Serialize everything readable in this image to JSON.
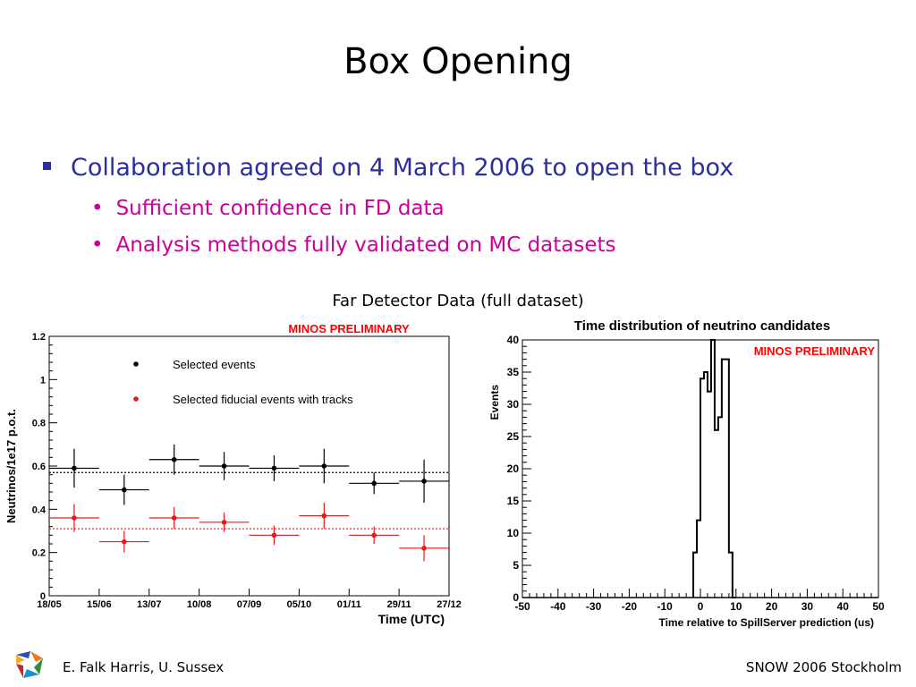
{
  "slide": {
    "title": "Box Opening",
    "bullet": "Collaboration agreed on 4 March 2006 to open the box",
    "sub_bullets": [
      "Sufficient confidence in FD data",
      "Analysis methods fully validated on MC datasets"
    ],
    "figure_caption": "Far Detector Data (full dataset)",
    "footer_left": "E. Falk Harris, U. Sussex",
    "footer_right": "SNOW 2006 Stockholm"
  },
  "colors": {
    "bullet_blue": "#2b2e9e",
    "sub_magenta": "#cc0099",
    "red_series": "#e41a1c",
    "label_red": "#ff0000"
  },
  "chart_data": [
    {
      "type": "scatter",
      "title": "MINOS PRELIMINARY",
      "xlabel": "Time (UTC)",
      "ylabel": "Neutrinos/1e17 p.o.t.",
      "x_tick_labels": [
        "18/05",
        "15/06",
        "13/07",
        "10/08",
        "07/09",
        "05/10",
        "01/11",
        "29/11",
        "27/12"
      ],
      "y_ticks": [
        "0",
        "0.2",
        "0.4",
        "0.6",
        "0.8",
        "1",
        "1.2"
      ],
      "ylim": [
        0,
        1.2
      ],
      "series": [
        {
          "name": "Selected events",
          "color": "#000000",
          "points": [
            {
              "x": 0.5,
              "y": 0.59,
              "xerr": 0.5,
              "yerr": 0.09
            },
            {
              "x": 1.5,
              "y": 0.49,
              "xerr": 0.5,
              "yerr": 0.07
            },
            {
              "x": 2.5,
              "y": 0.63,
              "xerr": 0.5,
              "yerr": 0.07
            },
            {
              "x": 3.5,
              "y": 0.6,
              "xerr": 0.5,
              "yerr": 0.065
            },
            {
              "x": 4.5,
              "y": 0.59,
              "xerr": 0.5,
              "yerr": 0.06
            },
            {
              "x": 5.5,
              "y": 0.6,
              "xerr": 0.5,
              "yerr": 0.08
            },
            {
              "x": 6.5,
              "y": 0.52,
              "xerr": 0.5,
              "yerr": 0.05
            },
            {
              "x": 7.5,
              "y": 0.53,
              "xerr": 0.5,
              "yerr": 0.1
            }
          ],
          "mean": 0.57
        },
        {
          "name": "Selected fiducial events with tracks",
          "color": "#e41a1c",
          "points": [
            {
              "x": 0.5,
              "y": 0.36,
              "xerr": 0.5,
              "yerr": 0.065
            },
            {
              "x": 1.5,
              "y": 0.25,
              "xerr": 0.5,
              "yerr": 0.05
            },
            {
              "x": 2.5,
              "y": 0.36,
              "xerr": 0.5,
              "yerr": 0.05
            },
            {
              "x": 3.5,
              "y": 0.34,
              "xerr": 0.5,
              "yerr": 0.045
            },
            {
              "x": 4.5,
              "y": 0.28,
              "xerr": 0.5,
              "yerr": 0.045
            },
            {
              "x": 5.5,
              "y": 0.37,
              "xerr": 0.5,
              "yerr": 0.06
            },
            {
              "x": 6.5,
              "y": 0.28,
              "xerr": 0.5,
              "yerr": 0.04
            },
            {
              "x": 7.5,
              "y": 0.22,
              "xerr": 0.5,
              "yerr": 0.06
            }
          ],
          "mean": 0.31
        }
      ]
    },
    {
      "type": "bar",
      "title": "Time distribution of neutrino candidates",
      "annotation": "MINOS PRELIMINARY",
      "xlabel": "Time relative to SpillServer prediction (us)",
      "ylabel": "Events",
      "xlim": [
        -50,
        50
      ],
      "ylim": [
        0,
        40
      ],
      "x_ticks": [
        -50,
        -40,
        -30,
        -20,
        -10,
        0,
        10,
        20,
        30,
        40,
        50
      ],
      "y_ticks": [
        0,
        5,
        10,
        15,
        20,
        25,
        30,
        35,
        40
      ],
      "bin_edges": [
        -2,
        -1,
        0,
        1,
        2,
        3,
        4,
        5,
        6,
        7,
        8,
        9,
        10
      ],
      "values": [
        7,
        12,
        34,
        35,
        32,
        40,
        26,
        28,
        37,
        37,
        7,
        0
      ]
    }
  ]
}
